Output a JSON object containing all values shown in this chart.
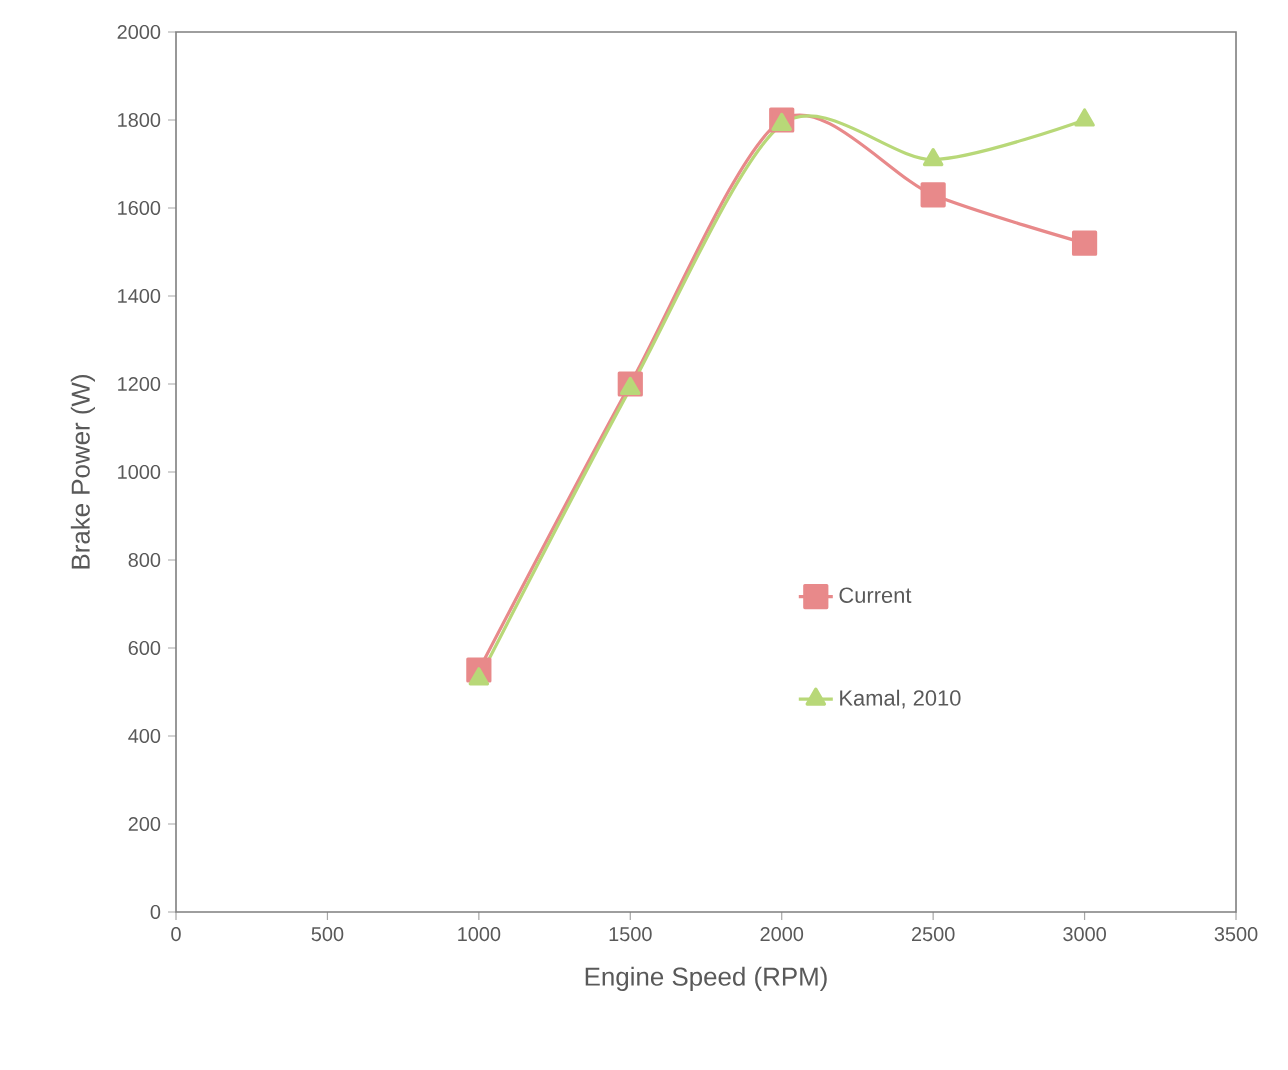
{
  "chart_data": {
    "type": "line",
    "xlabel": "Engine Speed (RPM)",
    "ylabel": "Brake Power (W)",
    "x": [
      1000,
      1500,
      2000,
      2500,
      3000
    ],
    "series": [
      {
        "name": "Current",
        "color": "#e8898a",
        "marker": "square",
        "values": [
          550,
          1200,
          1800,
          1630,
          1520
        ]
      },
      {
        "name": "Kamal, 2010",
        "color": "#b8d878",
        "marker": "triangle",
        "values": [
          530,
          1190,
          1790,
          1710,
          1800
        ]
      }
    ],
    "xlim": [
      0,
      3500
    ],
    "ylim": [
      0,
      2000
    ],
    "xticks": [
      0,
      500,
      1000,
      1500,
      2000,
      2500,
      3000,
      3500
    ],
    "yticks": [
      0,
      200,
      400,
      600,
      800,
      1000,
      1200,
      1400,
      1600,
      1800,
      2000
    ],
    "legend": "right",
    "line_style": "solid"
  }
}
